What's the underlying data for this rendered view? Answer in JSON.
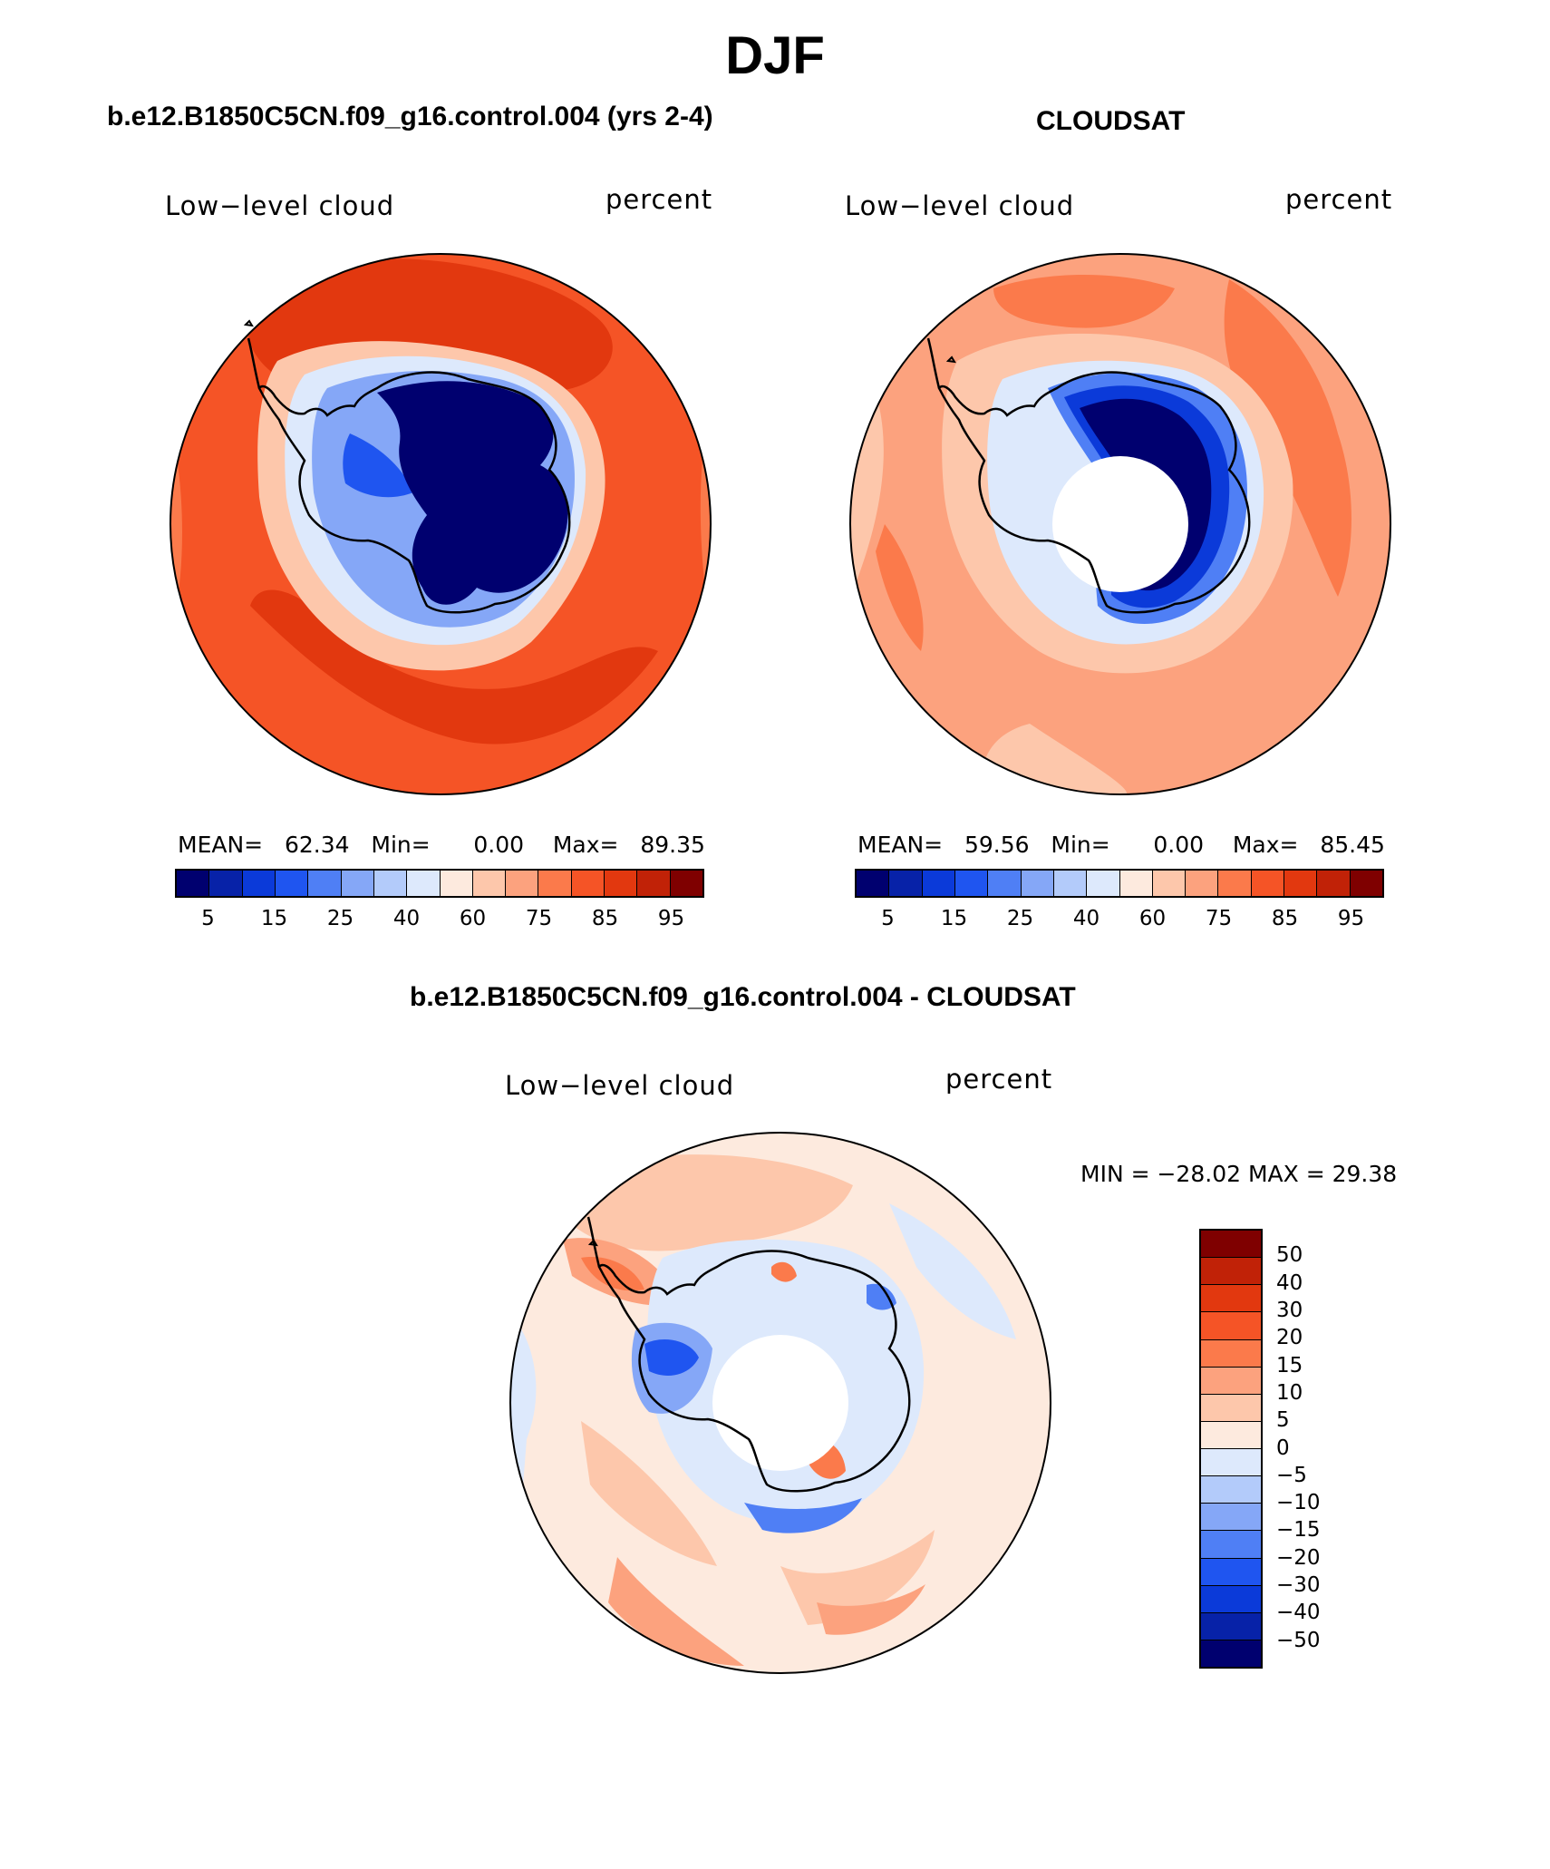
{
  "page_title": "DJF",
  "panels": [
    {
      "title": "b.e12.B1850C5CN.f09_g16.control.004 (yrs 2-4)",
      "variable": "Low−level cloud",
      "units": "percent",
      "stats": {
        "mean_label": "MEAN=",
        "mean": "62.34",
        "min_label": "Min=",
        "min": "0.00",
        "max_label": "Max=",
        "max": "89.35"
      },
      "colorbar": {
        "colors": [
          "#00006f",
          "#0722a8",
          "#0b3ad9",
          "#1f55f0",
          "#4f7ff5",
          "#85a7f7",
          "#b3cbfa",
          "#dde9fc",
          "#fdeade",
          "#fdc7ab",
          "#fca27e",
          "#fb7a4b",
          "#f55426",
          "#e2380f",
          "#c12207",
          "#7f0000"
        ],
        "ticks": [
          "5",
          "15",
          "25",
          "40",
          "60",
          "75",
          "85",
          "95"
        ]
      }
    },
    {
      "title": "CLOUDSAT",
      "variable": "Low−level cloud",
      "units": "percent",
      "stats": {
        "mean_label": "MEAN=",
        "mean": "59.56",
        "min_label": "Min=",
        "min": "0.00",
        "max_label": "Max=",
        "max": "85.45"
      },
      "colorbar": {
        "colors": [
          "#00006f",
          "#0722a8",
          "#0b3ad9",
          "#1f55f0",
          "#4f7ff5",
          "#85a7f7",
          "#b3cbfa",
          "#dde9fc",
          "#fdeade",
          "#fdc7ab",
          "#fca27e",
          "#fb7a4b",
          "#f55426",
          "#e2380f",
          "#c12207",
          "#7f0000"
        ],
        "ticks": [
          "5",
          "15",
          "25",
          "40",
          "60",
          "75",
          "85",
          "95"
        ]
      }
    },
    {
      "title": "b.e12.B1850C5CN.f09_g16.control.004 - CLOUDSAT",
      "variable": "Low−level cloud",
      "units": "percent",
      "stats_text": "MIN = −28.02 MAX =   29.38",
      "colorbar": {
        "colors": [
          "#7f0000",
          "#c12207",
          "#e2380f",
          "#f55426",
          "#fb7a4b",
          "#fca27e",
          "#fdc7ab",
          "#fdeade",
          "#dde9fc",
          "#b3cbfa",
          "#85a7f7",
          "#4f7ff5",
          "#1f55f0",
          "#0b3ad9",
          "#0722a8",
          "#00006f"
        ],
        "ticks": [
          "50",
          "40",
          "30",
          "20",
          "15",
          "10",
          "5",
          "0",
          "−5",
          "−10",
          "−15",
          "−20",
          "−30",
          "−40",
          "−50"
        ]
      }
    }
  ]
}
